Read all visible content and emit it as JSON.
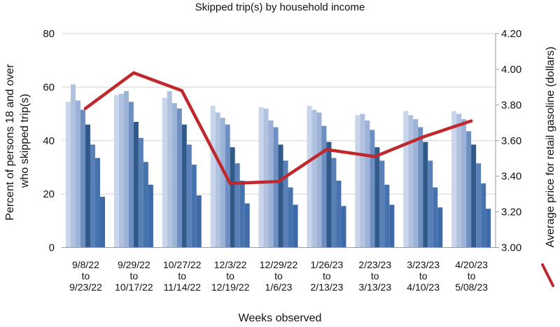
{
  "chart_data": {
    "type": "bar",
    "title": "Skipped trip(s) by household income",
    "xlabel": "Weeks observed",
    "ylabel": "Percent of persons 18 and over who skipped trip(s)",
    "ylabel_lines": [
      "Percent of persons 18 and over",
      "who skipped trip(s)"
    ],
    "y2label": "Average price for retail gasoline (dollars)",
    "ylim": [
      0,
      80
    ],
    "yticks": [
      "0",
      "20",
      "40",
      "60",
      "80"
    ],
    "y2lim": [
      3.0,
      4.2
    ],
    "y2ticks": [
      "3.00",
      "3.20",
      "3.40",
      "3.60",
      "3.80",
      "4.00",
      "4.20"
    ],
    "grid": true,
    "categories": [
      [
        "9/8/22",
        "to",
        "9/23/22"
      ],
      [
        "9/29/22",
        "to",
        "10/17/22"
      ],
      [
        "10/27/22",
        "to",
        "11/14/22"
      ],
      [
        "12/3/22",
        "to",
        "12/19/22"
      ],
      [
        "12/29/22",
        "to",
        "1/6/23"
      ],
      [
        "1/26/23",
        "to",
        "2/13/23"
      ],
      [
        "2/23/23",
        "to",
        "3/13/23"
      ],
      [
        "3/23/23",
        "to",
        "4/10/23"
      ],
      [
        "4/20/23",
        "to",
        "5/08/23"
      ]
    ],
    "bar_colors": [
      "#c9d5ea",
      "#b0c2df",
      "#9cb2d6",
      "#6e8fc2",
      "#2f5a8a",
      "#5a80b8",
      "#4672ad",
      "#3e6aa7",
      "#3465a2"
    ],
    "bar_series": [
      [
        54.5,
        61,
        55,
        51.5,
        46,
        38.5,
        33.5,
        19
      ],
      [
        57,
        57.5,
        58.5,
        54.5,
        47,
        41,
        32,
        23.5
      ],
      [
        56,
        58.5,
        54,
        52,
        46,
        38.5,
        31,
        19.5
      ],
      [
        53,
        50.5,
        48.5,
        46,
        37.5,
        31.5,
        25,
        16.5
      ],
      [
        52.5,
        52,
        47.5,
        45,
        38.5,
        32.5,
        22.5,
        16
      ],
      [
        53,
        51.5,
        50.5,
        45.5,
        39.5,
        33.5,
        25,
        15.5
      ],
      [
        49.5,
        50,
        47.5,
        44,
        37.5,
        32.5,
        23.5,
        16
      ],
      [
        51,
        49.5,
        48,
        45,
        39.5,
        32.5,
        22.5,
        15
      ],
      [
        51,
        50,
        48,
        43.5,
        38.5,
        31.5,
        24,
        14.5
      ]
    ],
    "line": {
      "axis": "right",
      "color": "#c0282e",
      "values": [
        3.78,
        3.98,
        3.88,
        3.36,
        3.37,
        3.55,
        3.51,
        3.62,
        3.71
      ]
    }
  }
}
